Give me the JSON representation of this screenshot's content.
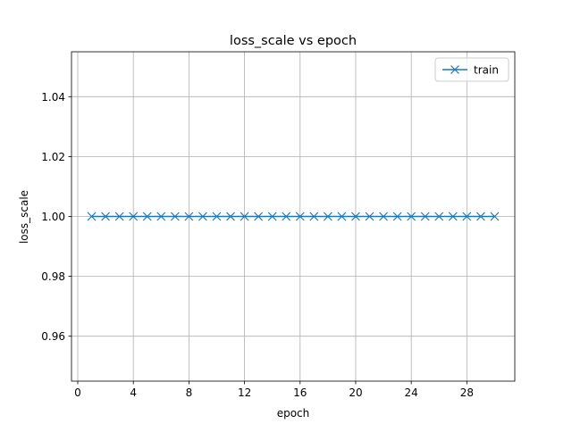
{
  "chart_data": {
    "type": "line",
    "title": "loss_scale vs epoch",
    "x_label": "epoch",
    "y_label": "loss_scale",
    "x": [
      1,
      2,
      3,
      4,
      5,
      6,
      7,
      8,
      9,
      10,
      11,
      12,
      13,
      14,
      15,
      16,
      17,
      18,
      19,
      20,
      21,
      22,
      23,
      24,
      25,
      26,
      27,
      28,
      29,
      30
    ],
    "series": [
      {
        "name": "train",
        "color": "#1f77b4",
        "marker": "x",
        "values": [
          1,
          1,
          1,
          1,
          1,
          1,
          1,
          1,
          1,
          1,
          1,
          1,
          1,
          1,
          1,
          1,
          1,
          1,
          1,
          1,
          1,
          1,
          1,
          1,
          1,
          1,
          1,
          1,
          1,
          1
        ]
      }
    ],
    "xlim": [
      -0.45,
      31.45
    ],
    "xticks": [
      0,
      4,
      8,
      12,
      16,
      20,
      24,
      28
    ],
    "ylim": [
      0.945,
      1.055
    ],
    "yticks": [
      0.96,
      0.98,
      {
        "value": 1,
        "label": "1.00"
      },
      1.02,
      1.04
    ],
    "grid": true,
    "legend": "upper right"
  }
}
